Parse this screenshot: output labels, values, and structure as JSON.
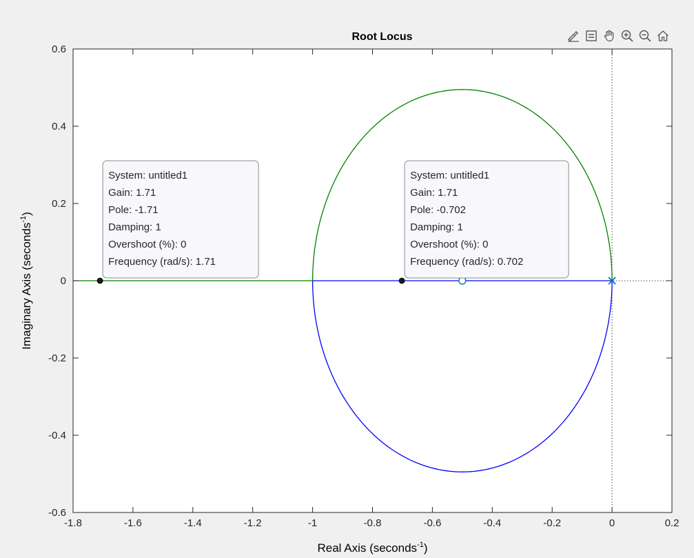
{
  "chart_data": {
    "type": "line",
    "title": "Root Locus",
    "xlabel": "Real Axis (seconds",
    "xlabel_sup": "-1",
    "ylabel": "Imaginary Axis (seconds",
    "ylabel_sup": "-1",
    "xlim": [
      -1.8,
      0.2
    ],
    "ylim": [
      -0.6,
      0.6
    ],
    "xticks": [
      "-1.8",
      "-1.6",
      "-1.4",
      "-1.2",
      "-1",
      "-0.8",
      "-0.6",
      "-0.4",
      "-0.2",
      "0",
      "0.2"
    ],
    "yticks": [
      "-0.6",
      "-0.4",
      "-0.2",
      "0",
      "0.2",
      "0.4",
      "0.6"
    ],
    "grid": false,
    "poles": [
      {
        "x": 0,
        "y": 0
      }
    ],
    "zeros": [
      {
        "x": -0.5,
        "y": 0
      }
    ],
    "series": [
      {
        "color": "#0000ff",
        "segments": [
          {
            "shape": "line",
            "x": [
              0,
              -0.5
            ],
            "y": [
              0,
              0
            ]
          },
          {
            "shape": "line",
            "x": [
              -0.5,
              -1.0
            ],
            "y": [
              0,
              0
            ]
          },
          {
            "shape": "ellipse-lower",
            "center": [
              -0.5,
              0
            ],
            "rx": 0.5,
            "ry": 0.495
          }
        ]
      },
      {
        "color": "#008000",
        "segments": [
          {
            "shape": "ellipse-upper",
            "center": [
              -0.5,
              0
            ],
            "rx": 0.5,
            "ry": 0.495
          },
          {
            "shape": "line",
            "x": [
              -1.0,
              -1.8
            ],
            "y": [
              0,
              0
            ]
          }
        ]
      }
    ],
    "datatips": [
      {
        "point": {
          "x": -1.71,
          "y": 0
        },
        "lines": [
          "System: untitled1",
          "Gain: 1.71",
          "Pole: -1.71",
          "Damping: 1",
          "Overshoot (%): 0",
          "Frequency (rad/s): 1.71"
        ]
      },
      {
        "point": {
          "x": -0.702,
          "y": 0
        },
        "lines": [
          "System: untitled1",
          "Gain: 1.71",
          "Pole: -0.702",
          "Damping: 1",
          "Overshoot (%): 0",
          "Frequency (rad/s): 0.702"
        ]
      }
    ]
  },
  "colors": {
    "figure_bg": "#f0f0f0",
    "axes_bg": "#ffffff",
    "axes_edge": "#262626",
    "pole_marker": "#0072bd",
    "zero_marker": "#0072bd",
    "reference_line": "#262626",
    "tip_bg": "#f8f8fc",
    "tip_border": "#8c8c8c"
  },
  "toolbar": [
    {
      "icon": "brush-icon"
    },
    {
      "icon": "datatip-icon"
    },
    {
      "icon": "pan-hand-icon"
    },
    {
      "icon": "zoom-in-icon"
    },
    {
      "icon": "zoom-out-icon"
    },
    {
      "icon": "home-icon"
    }
  ]
}
